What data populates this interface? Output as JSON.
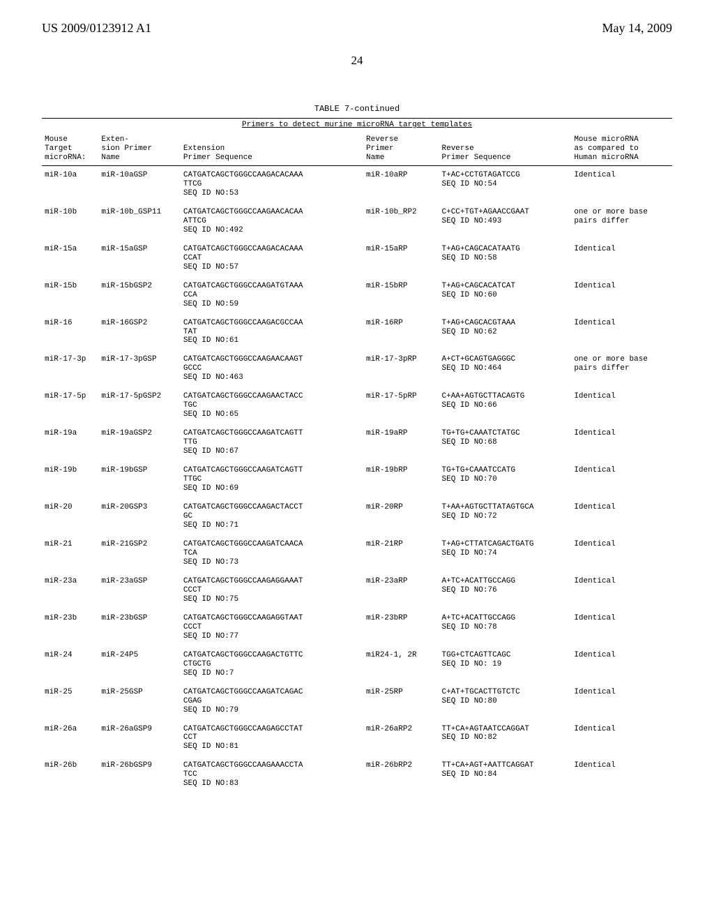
{
  "header": {
    "pubNumber": "US 2009/0123912 A1",
    "pubDate": "May 14, 2009"
  },
  "pageNumber": "24",
  "tableTitle": "TABLE 7-continued",
  "tableSubtitle": "Primers to detect murine microRNA target templates",
  "columns": {
    "c1": "Mouse\nTarget\nmicroRNA:",
    "c2": "Exten-\nsion Primer\nName",
    "c3": "Extension\nPrimer Sequence",
    "c4": "Reverse\nPrimer\nName",
    "c5": "Reverse\nPrimer Sequence",
    "c6": "Mouse microRNA\nas compared to\nHuman microRNA"
  },
  "rows": [
    {
      "c1": "miR-10a",
      "c2": "miR-10aGSP",
      "c3": "CATGATCAGCTGGGCCAAGACACAAA\nTTCG\nSEQ ID NO:53",
      "c4": "miR-10aRP",
      "c5": "T+AC+CCTGTAGATCCG\nSEQ ID NO:54",
      "c6": "Identical"
    },
    {
      "c1": "miR-10b",
      "c2": "miR-10b_GSP11",
      "c3": "CATGATCAGCTGGGCCAAGAACACAA\nATTCG\nSEQ ID NO:492",
      "c4": "miR-10b_RP2",
      "c5": "C+CC+TGT+AGAACCGAAT\nSEQ ID NO:493",
      "c6": "one or more base\npairs differ"
    },
    {
      "c1": "miR-15a",
      "c2": "miR-15aGSP",
      "c3": "CATGATCAGCTGGGCCAAGACACAAA\nCCAT\nSEQ ID NO:57",
      "c4": "miR-15aRP",
      "c5": "T+AG+CAGCACATAATG\nSEQ ID NO:58",
      "c6": "Identical"
    },
    {
      "c1": "miR-15b",
      "c2": "miR-15bGSP2",
      "c3": "CATGATCAGCTGGGCCAAGATGTAAA\nCCA\nSEQ ID NO:59",
      "c4": "miR-15bRP",
      "c5": "T+AG+CAGCACATCAT\nSEQ ID NO:60",
      "c6": "Identical"
    },
    {
      "c1": "miR-16",
      "c2": "miR-16GSP2",
      "c3": "CATGATCAGCTGGGCCAAGACGCCAA\nTAT\nSEQ ID NO:61",
      "c4": "miR-16RP",
      "c5": "T+AG+CAGCACGTAAA\nSEQ ID NO:62",
      "c6": "Identical"
    },
    {
      "c1": "miR-17-3p",
      "c2": "miR-17-3pGSP",
      "c3": "CATGATCAGCTGGGCCAAGAACAAGT\nGCCC\nSEQ ID NO:463",
      "c4": "miR-17-3pRP",
      "c5": "A+CT+GCAGTGAGGGC\nSEQ ID NO:464",
      "c6": "one or more base\npairs differ"
    },
    {
      "c1": "miR-17-5p",
      "c2": "miR-17-5pGSP2",
      "c3": "CATGATCAGCTGGGCCAAGAACTACC\nTGC\nSEQ ID NO:65",
      "c4": "miR-17-5pRP",
      "c5": "C+AA+AGTGCTTACAGTG\nSEQ ID NO:66",
      "c6": "Identical"
    },
    {
      "c1": "miR-19a",
      "c2": "miR-19aGSP2",
      "c3": "CATGATCAGCTGGGCCAAGATCAGTT\nTTG\nSEQ ID NO:67",
      "c4": "miR-19aRP",
      "c5": "TG+TG+CAAATCTATGC\nSEQ ID NO:68",
      "c6": "Identical"
    },
    {
      "c1": "miR-19b",
      "c2": "miR-19bGSP",
      "c3": "CATGATCAGCTGGGCCAAGATCAGTT\nTTGC\nSEQ ID NO:69",
      "c4": "miR-19bRP",
      "c5": "TG+TG+CAAATCCATG\nSEQ ID NO:70",
      "c6": "Identical"
    },
    {
      "c1": "miR-20",
      "c2": "miR-20GSP3",
      "c3": "CATGATCAGCTGGGCCAAGACTACCT\nGC\nSEQ ID NO:71",
      "c4": "miR-20RP",
      "c5": "T+AA+AGTGCTTATAGTGCA\nSEQ ID NO:72",
      "c6": "Identical"
    },
    {
      "c1": "miR-21",
      "c2": "miR-21GSP2",
      "c3": "CATGATCAGCTGGGCCAAGATCAACA\nTCA\nSEQ ID NO:73",
      "c4": "miR-21RP",
      "c5": "T+AG+CTTATCAGACTGATG\nSEQ ID NO:74",
      "c6": "Identical"
    },
    {
      "c1": "miR-23a",
      "c2": "miR-23aGSP",
      "c3": "CATGATCAGCTGGGCCAAGAGGAAAT\nCCCT\nSEQ ID NO:75",
      "c4": "miR-23aRP",
      "c5": "A+TC+ACATTGCCAGG\nSEQ ID NO:76",
      "c6": "Identical"
    },
    {
      "c1": "miR-23b",
      "c2": "miR-23bGSP",
      "c3": "CATGATCAGCTGGGCCAAGAGGTAAT\nCCCT\nSEQ ID NO:77",
      "c4": "miR-23bRP",
      "c5": "A+TC+ACATTGCCAGG\nSEQ ID NO:78",
      "c6": "Identical"
    },
    {
      "c1": "miR-24",
      "c2": "miR-24P5",
      "c3": "CATGATCAGCTGGGCCAAGACTGTTC\nCTGCTG\nSEQ ID NO:7",
      "c4": "miR24-1, 2R",
      "c5": "TGG+CTCAGTTCAGC\nSEQ ID NO: 19",
      "c6": "Identical"
    },
    {
      "c1": "miR-25",
      "c2": "miR-25GSP",
      "c3": "CATGATCAGCTGGGCCAAGATCAGAC\nCGAG\nSEQ ID NO:79",
      "c4": "miR-25RP",
      "c5": "C+AT+TGCACTTGTCTC\nSEQ ID NO:80",
      "c6": "Identical"
    },
    {
      "c1": "miR-26a",
      "c2": "miR-26aGSP9",
      "c3": "CATGATCAGCTGGGCCAAGAGCCTAT\nCCT\nSEQ ID NO:81",
      "c4": "miR-26aRP2",
      "c5": "TT+CA+AGTAATCCAGGAT\nSEQ ID NO:82",
      "c6": "Identical"
    },
    {
      "c1": "miR-26b",
      "c2": "miR-26bGSP9",
      "c3": "CATGATCAGCTGGGCCAAGAAACCTA\nTCC\nSEQ ID NO:83",
      "c4": "miR-26bRP2",
      "c5": "TT+CA+AGT+AATTCAGGAT\nSEQ ID NO:84",
      "c6": "Identical"
    }
  ]
}
